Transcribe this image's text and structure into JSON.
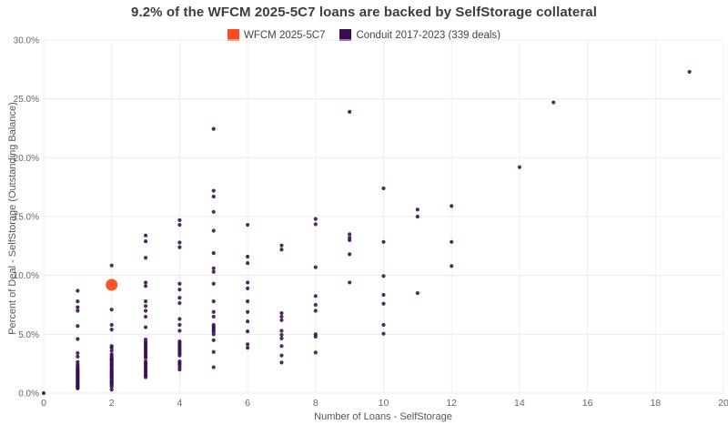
{
  "title": "9.2% of the WFCM 2025-5C7 loans are backed by SelfStorage collateral",
  "legend": [
    {
      "label": "WFCM 2025-5C7",
      "color": "#FC4B1E"
    },
    {
      "label": "Conduit 2017-2023 (339 deals)",
      "color": "#3A0B52"
    }
  ],
  "chart_data": {
    "type": "scatter",
    "title": "9.2% of the WFCM 2025-5C7 loans are backed by SelfStorage collateral",
    "xlabel": "Number of Loans - SelfStorage",
    "ylabel": "Percent of Deal - SelfStorage (Outstanding Balance)",
    "xlim": [
      0,
      20
    ],
    "ylim": [
      0,
      30
    ],
    "grid": true,
    "legend_position": "top-center",
    "x_ticks": {
      "values": [
        0,
        2,
        4,
        6,
        8,
        10,
        12,
        14,
        16,
        18,
        20
      ],
      "labels": [
        "0",
        "2",
        "4",
        "6",
        "8",
        "10",
        "12",
        "14",
        "16",
        "18",
        "20"
      ]
    },
    "y_ticks": {
      "values": [
        0,
        5,
        10,
        15,
        20,
        25,
        30
      ],
      "labels": [
        "0.0%",
        "5.0%",
        "10.0%",
        "15.0%",
        "20.0%",
        "25.0%",
        "30.0%"
      ]
    },
    "series": [
      {
        "name": "WFCM 2025-5C7",
        "color": "#FC4B1E",
        "marker_radius": 6.5,
        "opacity": 0.95,
        "points": [
          [
            2,
            9.2
          ]
        ]
      },
      {
        "name": "Conduit 2017-2023 (339 deals)",
        "color": "#3A0B52",
        "marker_radius": 2.1,
        "opacity": 0.88,
        "points": [
          [
            0,
            0.0
          ],
          [
            1,
            8.7
          ],
          [
            1,
            7.8
          ],
          [
            1,
            7.3
          ],
          [
            1,
            7.0
          ],
          [
            1,
            5.7
          ],
          [
            1,
            4.6
          ],
          [
            1,
            3.4
          ],
          [
            1,
            3.1
          ],
          [
            1,
            2.65
          ],
          [
            1,
            2.45
          ],
          [
            1,
            2.3
          ],
          [
            1,
            2.15
          ],
          [
            1,
            2.05
          ],
          [
            1,
            1.95
          ],
          [
            1,
            1.85
          ],
          [
            1,
            1.75
          ],
          [
            1,
            1.7
          ],
          [
            1,
            1.6
          ],
          [
            1,
            1.5
          ],
          [
            1,
            1.45
          ],
          [
            1,
            1.35
          ],
          [
            1,
            1.25
          ],
          [
            1,
            1.2
          ],
          [
            1,
            1.1
          ],
          [
            1,
            1.0
          ],
          [
            1,
            0.95
          ],
          [
            1,
            0.85
          ],
          [
            1,
            0.8
          ],
          [
            1,
            0.7
          ],
          [
            1,
            0.6
          ],
          [
            1,
            0.55
          ],
          [
            1,
            0.45
          ],
          [
            1,
            0.4
          ],
          [
            2,
            10.85
          ],
          [
            2,
            7.1
          ],
          [
            2,
            5.8
          ],
          [
            2,
            5.4
          ],
          [
            2,
            4.0
          ],
          [
            2,
            3.85
          ],
          [
            2,
            3.6
          ],
          [
            2,
            3.3
          ],
          [
            2,
            3.15
          ],
          [
            2,
            3.0
          ],
          [
            2,
            2.9
          ],
          [
            2,
            2.8
          ],
          [
            2,
            2.7
          ],
          [
            2,
            2.55
          ],
          [
            2,
            2.45
          ],
          [
            2,
            2.35
          ],
          [
            2,
            2.25
          ],
          [
            2,
            2.1
          ],
          [
            2,
            2.0
          ],
          [
            2,
            1.9
          ],
          [
            2,
            1.8
          ],
          [
            2,
            1.7
          ],
          [
            2,
            1.6
          ],
          [
            2,
            1.5
          ],
          [
            2,
            1.4
          ],
          [
            2,
            1.3
          ],
          [
            2,
            1.2
          ],
          [
            2,
            1.1
          ],
          [
            2,
            1.0
          ],
          [
            2,
            0.9
          ],
          [
            2,
            0.8
          ],
          [
            2,
            0.7
          ],
          [
            2,
            0.55
          ],
          [
            2,
            0.3
          ],
          [
            3,
            13.4
          ],
          [
            3,
            12.9
          ],
          [
            3,
            11.5
          ],
          [
            3,
            9.4
          ],
          [
            3,
            9.1
          ],
          [
            3,
            7.8
          ],
          [
            3,
            7.4
          ],
          [
            3,
            7.0
          ],
          [
            3,
            6.5
          ],
          [
            3,
            5.6
          ],
          [
            3,
            4.55
          ],
          [
            3,
            4.35
          ],
          [
            3,
            4.2
          ],
          [
            3,
            4.05
          ],
          [
            3,
            3.9
          ],
          [
            3,
            3.75
          ],
          [
            3,
            3.6
          ],
          [
            3,
            3.45
          ],
          [
            3,
            3.3
          ],
          [
            3,
            3.15
          ],
          [
            3,
            3.0
          ],
          [
            3,
            2.7
          ],
          [
            3,
            2.55
          ],
          [
            3,
            2.4
          ],
          [
            3,
            2.25
          ],
          [
            3,
            2.1
          ],
          [
            3,
            1.95
          ],
          [
            3,
            1.8
          ],
          [
            3,
            1.65
          ],
          [
            3,
            1.5
          ],
          [
            3,
            1.35
          ],
          [
            4,
            14.7
          ],
          [
            4,
            14.3
          ],
          [
            4,
            12.8
          ],
          [
            4,
            12.4
          ],
          [
            4,
            9.3
          ],
          [
            4,
            8.8
          ],
          [
            4,
            8.1
          ],
          [
            4,
            7.65
          ],
          [
            4,
            6.3
          ],
          [
            4,
            5.8
          ],
          [
            4,
            5.3
          ],
          [
            4,
            4.4
          ],
          [
            4,
            4.25
          ],
          [
            4,
            4.1
          ],
          [
            4,
            3.95
          ],
          [
            4,
            3.8
          ],
          [
            4,
            3.65
          ],
          [
            4,
            3.5
          ],
          [
            4,
            3.35
          ],
          [
            4,
            3.2
          ],
          [
            4,
            2.7
          ],
          [
            4,
            2.55
          ],
          [
            4,
            2.4
          ],
          [
            4,
            2.2
          ],
          [
            4,
            2.0
          ],
          [
            5,
            22.45
          ],
          [
            5,
            17.2
          ],
          [
            5,
            16.7
          ],
          [
            5,
            15.4
          ],
          [
            5,
            13.8
          ],
          [
            5,
            11.9
          ],
          [
            5,
            10.6
          ],
          [
            5,
            10.3
          ],
          [
            5,
            9.3
          ],
          [
            5,
            7.8
          ],
          [
            5,
            6.9
          ],
          [
            5,
            6.5
          ],
          [
            5,
            5.8
          ],
          [
            5,
            5.65
          ],
          [
            5,
            5.5
          ],
          [
            5,
            5.35
          ],
          [
            5,
            5.2
          ],
          [
            5,
            5.0
          ],
          [
            5,
            4.5
          ],
          [
            5,
            3.5
          ],
          [
            5,
            2.2
          ],
          [
            6,
            14.3
          ],
          [
            6,
            11.6
          ],
          [
            6,
            11.05
          ],
          [
            6,
            9.4
          ],
          [
            6,
            8.9
          ],
          [
            6,
            7.8
          ],
          [
            6,
            6.9
          ],
          [
            6,
            6.1
          ],
          [
            6,
            5.25
          ],
          [
            6,
            4.15
          ],
          [
            6,
            3.85
          ],
          [
            7,
            12.55
          ],
          [
            7,
            12.2
          ],
          [
            7,
            6.8
          ],
          [
            7,
            6.5
          ],
          [
            7,
            6.2
          ],
          [
            7,
            5.3
          ],
          [
            7,
            4.95
          ],
          [
            7,
            4.65
          ],
          [
            7,
            4.0
          ],
          [
            7,
            3.2
          ],
          [
            7,
            2.6
          ],
          [
            8,
            14.8
          ],
          [
            8,
            14.35
          ],
          [
            8,
            10.7
          ],
          [
            8,
            8.25
          ],
          [
            8,
            7.5
          ],
          [
            8,
            7.0
          ],
          [
            8,
            5.0
          ],
          [
            8,
            4.8
          ],
          [
            8,
            3.45
          ],
          [
            9,
            23.9
          ],
          [
            9,
            13.5
          ],
          [
            9,
            13.2
          ],
          [
            9,
            13.0
          ],
          [
            9,
            11.8
          ],
          [
            9,
            9.4
          ],
          [
            10,
            17.4
          ],
          [
            10,
            12.85
          ],
          [
            10,
            9.95
          ],
          [
            10,
            8.35
          ],
          [
            10,
            7.6
          ],
          [
            10,
            5.8
          ],
          [
            10,
            5.05
          ],
          [
            11,
            15.6
          ],
          [
            11,
            15.0
          ],
          [
            11,
            8.5
          ],
          [
            12,
            15.9
          ],
          [
            12,
            12.85
          ],
          [
            12,
            10.8
          ],
          [
            14,
            19.2
          ],
          [
            15,
            24.7
          ],
          [
            19,
            27.3
          ]
        ]
      }
    ]
  }
}
